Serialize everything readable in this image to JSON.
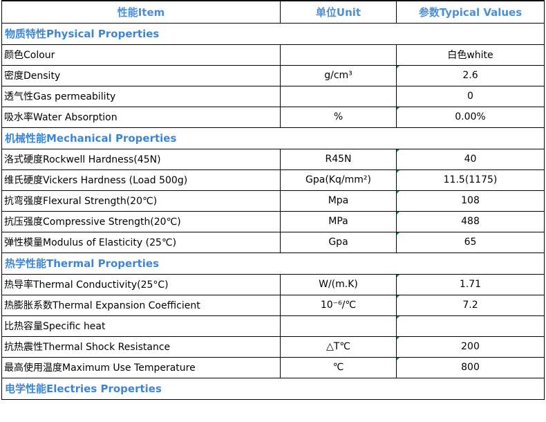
{
  "header": {
    "item": "性能Item",
    "unit": "单位Unit",
    "value": "参数Typical Values"
  },
  "sections": [
    {
      "title": "物质特性Physical Properties",
      "rows": [
        {
          "item": "颜色Colour",
          "unit": "",
          "value": "白色white"
        },
        {
          "item": "密度Density",
          "unit": "g/cm³",
          "value": "2.6"
        },
        {
          "item": "透气性Gas permeability",
          "unit": "",
          "value": "0"
        },
        {
          "item": "吸水率Water Absorption",
          "unit": "%",
          "value": "0.00%"
        }
      ]
    },
    {
      "title": "机械性能Mechanical Properties",
      "rows": [
        {
          "item": "洛式硬度Rockwell Hardness(45N)",
          "unit": "R45N",
          "value": "40"
        },
        {
          "item": "维氏硬度Vickers Hardness (Load 500g)",
          "unit": "Gpa(Kq/mm²)",
          "value": "11.5(1175)"
        },
        {
          "item": "抗弯强度Flexural Strength(20℃)",
          "unit": "Mpa",
          "value": "108"
        },
        {
          "item": "抗压强度Compressive Strength(20℃)",
          "unit": "MPa",
          "value": "488"
        },
        {
          "item": "弹性模量Modulus of Elasticity (25℃)",
          "unit": "Gpa",
          "value": "65"
        }
      ]
    },
    {
      "title": "热学性能Thermal Properties",
      "rows": [
        {
          "item": "热导率Thermal Conductivity(25°C)",
          "unit": "W/(m.K)",
          "value": "1.71"
        },
        {
          "item": "热膨胀系数Thermal Expansion Coefficient",
          "unit": "10⁻⁶/℃",
          "value": "7.2"
        },
        {
          "item": "比热容量Specific heat",
          "unit": "",
          "value": ""
        },
        {
          "item": "抗热震性Thermal Shock Resistance",
          "unit": "△T℃",
          "value": "200"
        },
        {
          "item": "最高使用温度Maximum Use Temperature",
          "unit": "℃",
          "value": "800"
        }
      ]
    },
    {
      "title": "电学性能Electries Properties",
      "rows": []
    }
  ],
  "colors": {
    "header_text": "#4a8fd8",
    "section_text": "#3d86d6",
    "cell_marker": "#0d8a3d",
    "grid": "#000000"
  }
}
